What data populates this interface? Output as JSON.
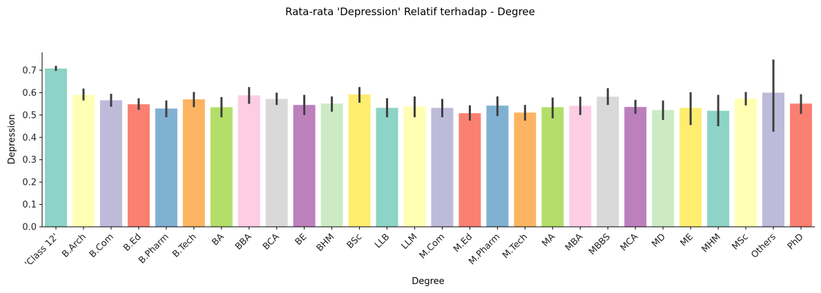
{
  "chart_data": {
    "type": "bar",
    "title": "Rata-rata 'Depression' Relatif terhadap - Degree",
    "xlabel": "Degree",
    "ylabel": "Depression",
    "ylim": [
      0,
      0.78
    ],
    "yticks": [
      "0.0",
      "0.1",
      "0.2",
      "0.3",
      "0.4",
      "0.5",
      "0.6",
      "0.7"
    ],
    "grid": false,
    "categories": [
      "'Class 12'",
      "B.Arch",
      "B.Com",
      "B.Ed",
      "B.Pharm",
      "B.Tech",
      "BA",
      "BBA",
      "BCA",
      "BE",
      "BHM",
      "BSc",
      "LLB",
      "LLM",
      "M.Com",
      "M.Ed",
      "M.Pharm",
      "M.Tech",
      "MA",
      "MBA",
      "MBBS",
      "MCA",
      "MD",
      "ME",
      "MHM",
      "MSc",
      "Others",
      "PhD"
    ],
    "values": [
      0.708,
      0.59,
      0.566,
      0.548,
      0.529,
      0.57,
      0.535,
      0.588,
      0.572,
      0.545,
      0.551,
      0.592,
      0.532,
      0.538,
      0.532,
      0.508,
      0.542,
      0.511,
      0.535,
      0.541,
      0.582,
      0.536,
      0.522,
      0.532,
      0.519,
      0.573,
      0.6,
      0.551
    ],
    "ci_low": [
      0.697,
      0.565,
      0.537,
      0.523,
      0.49,
      0.535,
      0.49,
      0.55,
      0.545,
      0.5,
      0.515,
      0.555,
      0.49,
      0.49,
      0.49,
      0.475,
      0.495,
      0.475,
      0.485,
      0.5,
      0.545,
      0.505,
      0.478,
      0.455,
      0.45,
      0.543,
      0.425,
      0.505
    ],
    "ci_high": [
      0.72,
      0.618,
      0.595,
      0.575,
      0.565,
      0.603,
      0.58,
      0.625,
      0.6,
      0.59,
      0.583,
      0.625,
      0.575,
      0.583,
      0.572,
      0.543,
      0.583,
      0.545,
      0.578,
      0.582,
      0.62,
      0.568,
      0.565,
      0.602,
      0.59,
      0.603,
      0.748,
      0.593
    ],
    "colors": [
      "#8dd3c7",
      "#ffffb3",
      "#bebada",
      "#fb8072",
      "#80b1d3",
      "#fdb462",
      "#b3de69",
      "#fccde5",
      "#d9d9d9",
      "#bc80bd",
      "#ccebc5",
      "#ffed6f"
    ],
    "errorbar_color": "#3f3f3f"
  }
}
